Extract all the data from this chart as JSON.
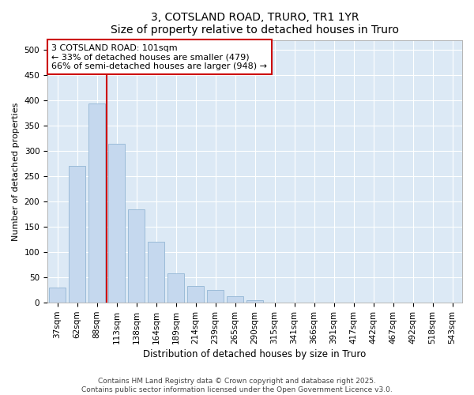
{
  "title": "3, COTSLAND ROAD, TRURO, TR1 1YR",
  "subtitle": "Size of property relative to detached houses in Truro",
  "xlabel": "Distribution of detached houses by size in Truro",
  "ylabel": "Number of detached properties",
  "categories": [
    "37sqm",
    "62sqm",
    "88sqm",
    "113sqm",
    "138sqm",
    "164sqm",
    "189sqm",
    "214sqm",
    "239sqm",
    "265sqm",
    "290sqm",
    "315sqm",
    "341sqm",
    "366sqm",
    "391sqm",
    "417sqm",
    "442sqm",
    "467sqm",
    "492sqm",
    "518sqm",
    "543sqm"
  ],
  "values": [
    30,
    270,
    395,
    315,
    185,
    120,
    58,
    33,
    25,
    13,
    5,
    0,
    0,
    0,
    0,
    0,
    0,
    0,
    0,
    0,
    0
  ],
  "bar_color": "#c5d8ee",
  "bar_edge_color": "#9bbbd8",
  "vline_x": 2.5,
  "vline_color": "#cc0000",
  "annotation_text": "3 COTSLAND ROAD: 101sqm\n← 33% of detached houses are smaller (479)\n66% of semi-detached houses are larger (948) →",
  "annotation_box_facecolor": "#ffffff",
  "annotation_box_edgecolor": "#cc0000",
  "ylim": [
    0,
    520
  ],
  "yticks": [
    0,
    50,
    100,
    150,
    200,
    250,
    300,
    350,
    400,
    450,
    500
  ],
  "fig_background": "#ffffff",
  "plot_background": "#dce9f5",
  "grid_color": "#ffffff",
  "footer_text": "Contains HM Land Registry data © Crown copyright and database right 2025.\nContains public sector information licensed under the Open Government Licence v3.0.",
  "title_fontsize": 10,
  "subtitle_fontsize": 9,
  "xlabel_fontsize": 8.5,
  "ylabel_fontsize": 8,
  "tick_fontsize": 7.5,
  "annotation_fontsize": 8,
  "footer_fontsize": 6.5
}
